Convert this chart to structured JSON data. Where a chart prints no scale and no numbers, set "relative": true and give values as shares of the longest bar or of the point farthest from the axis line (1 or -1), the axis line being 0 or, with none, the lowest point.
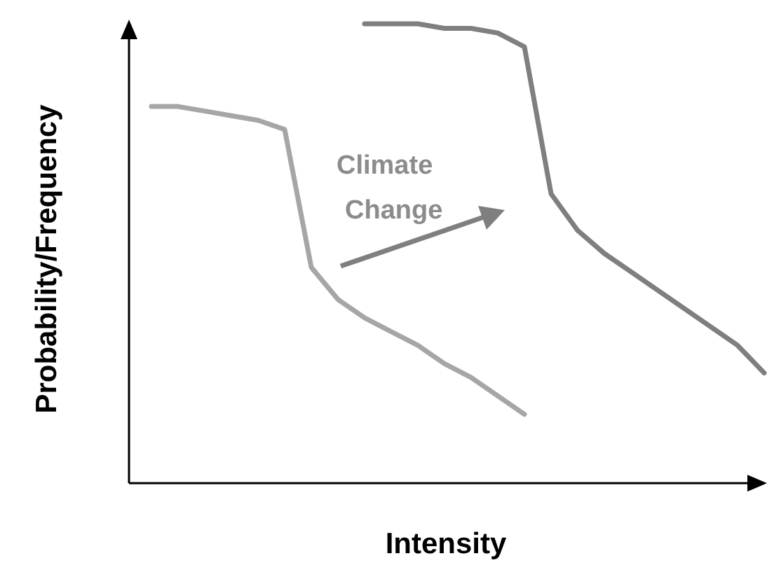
{
  "chart_data": {
    "type": "line",
    "relative": true,
    "xlabel": "Intensity",
    "ylabel": "Probability/Frequency",
    "annotations": [
      "Climate Change"
    ],
    "marker": "none",
    "line_style": "solid",
    "categories": [
      null,
      null,
      null,
      null,
      null,
      null,
      null,
      null,
      null,
      null,
      null,
      null,
      null,
      null,
      null,
      null,
      null,
      null,
      null,
      null,
      null,
      null,
      null,
      null
    ],
    "series": [
      {
        "color": "#a6a6a6",
        "values": [
          0.82,
          0.82,
          0.81,
          0.8,
          0.79,
          0.77,
          0.47,
          0.4,
          0.36,
          0.33,
          0.3,
          0.26,
          0.23,
          0.19,
          0.15,
          null,
          null,
          null,
          null,
          null,
          null,
          null,
          null,
          null
        ]
      },
      {
        "color": "#7f7f7f",
        "values": [
          null,
          null,
          null,
          null,
          null,
          null,
          null,
          null,
          1.0,
          1.0,
          1.0,
          0.99,
          0.99,
          0.98,
          0.95,
          0.63,
          0.55,
          0.5,
          0.46,
          0.42,
          0.38,
          0.34,
          0.3,
          0.24
        ]
      }
    ]
  }
}
